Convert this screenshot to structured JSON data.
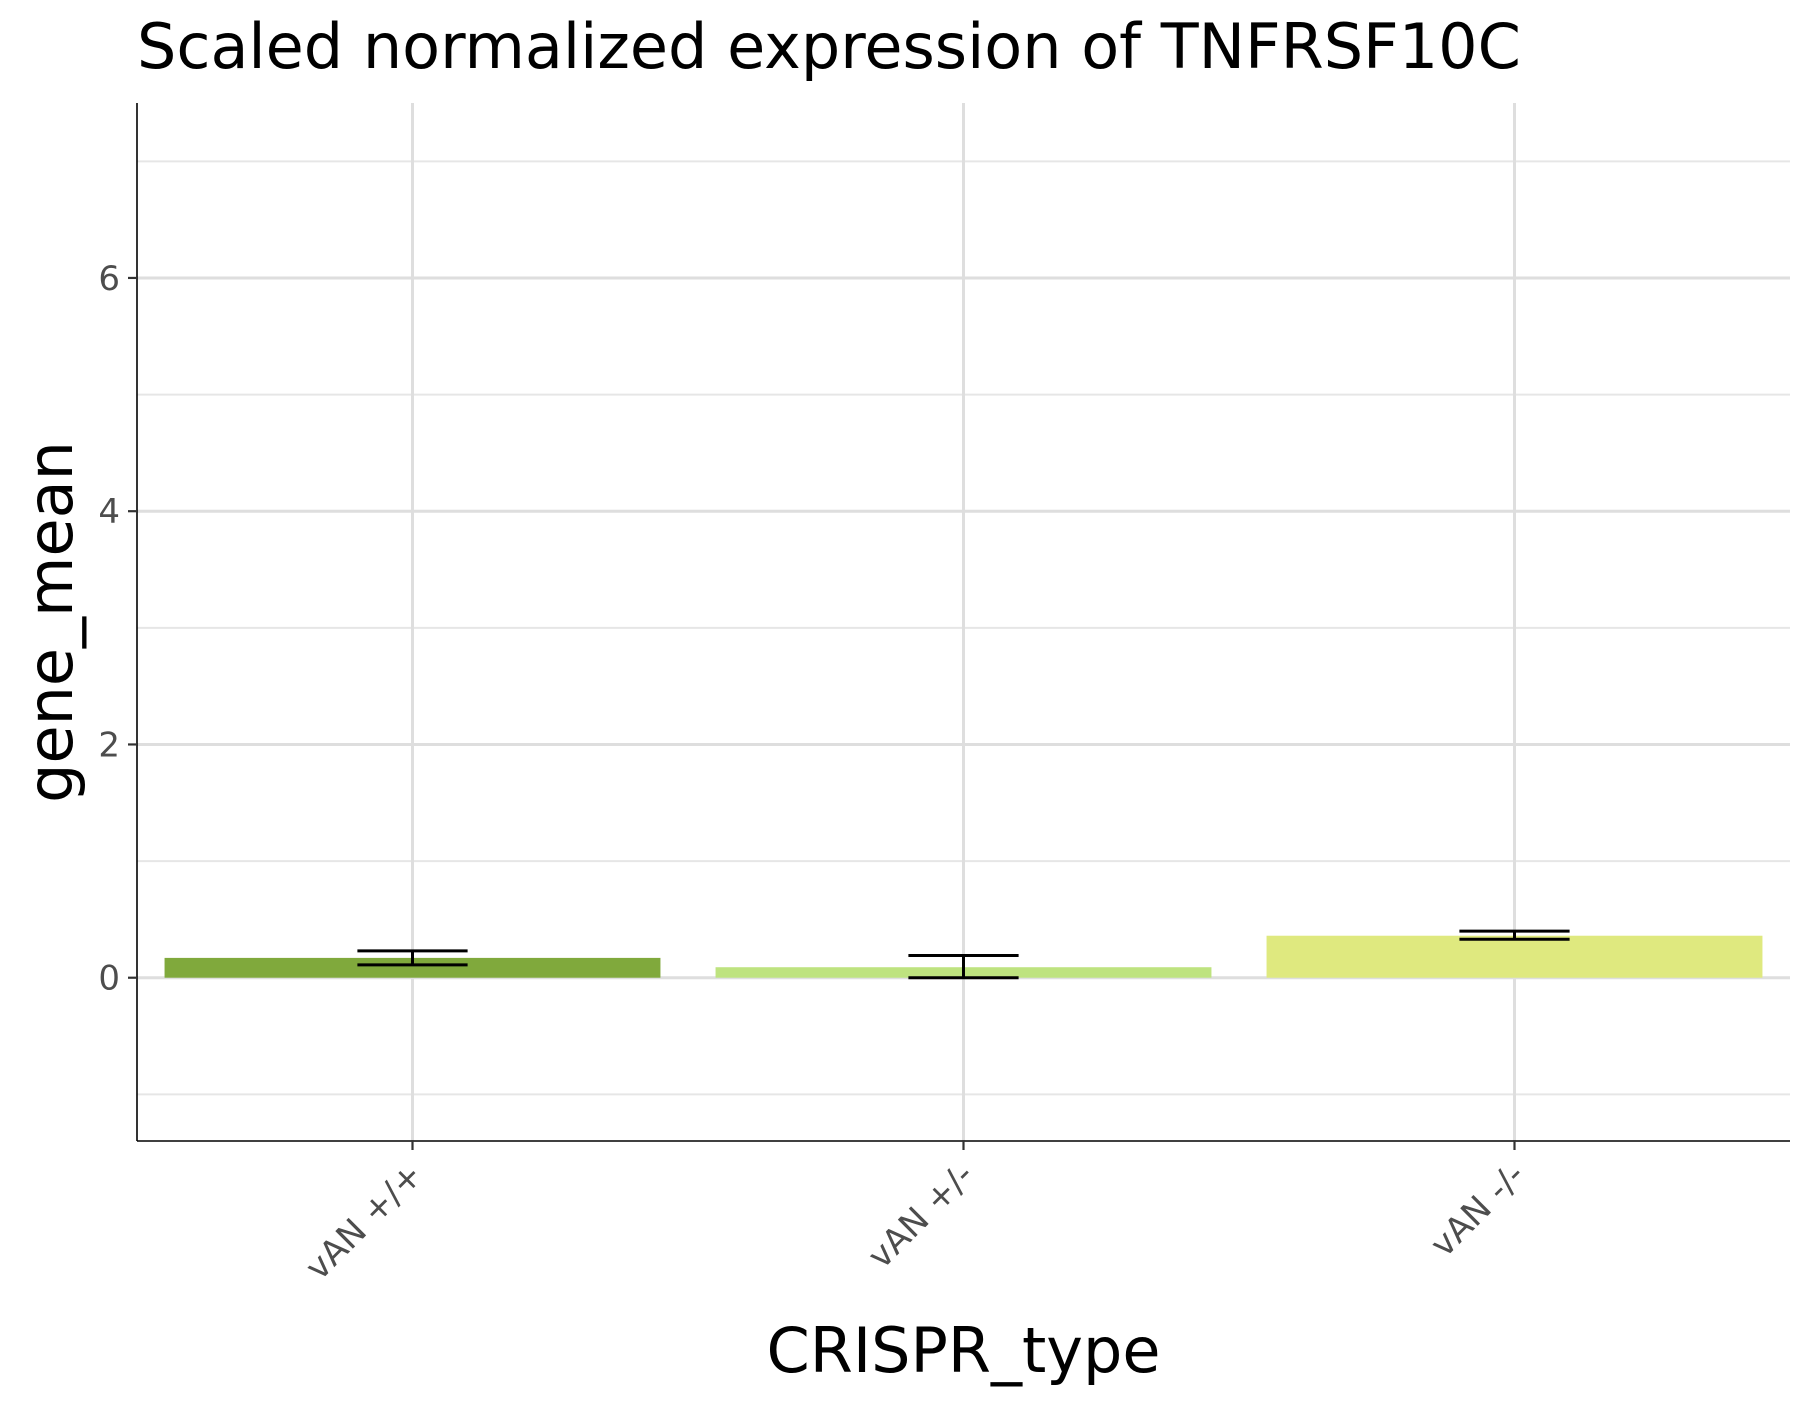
{
  "chart_data": {
    "type": "bar",
    "title": "Scaled normalized expression of TNFRSF10C",
    "xlabel": "CRISPR_type",
    "ylabel": "gene_mean",
    "categories": [
      "vAN +/+",
      "vAN +/-",
      "vAN -/-"
    ],
    "values": [
      0.17,
      0.09,
      0.36
    ],
    "error_low": [
      0.11,
      0.0,
      0.33
    ],
    "error_high": [
      0.23,
      0.19,
      0.4
    ],
    "colors": [
      "#80a93c",
      "#bee37f",
      "#dfe97f"
    ],
    "ylim": [
      -1.4,
      7.5
    ],
    "yticks": [
      0,
      2,
      4,
      6
    ],
    "grid": true,
    "legend": "none"
  }
}
